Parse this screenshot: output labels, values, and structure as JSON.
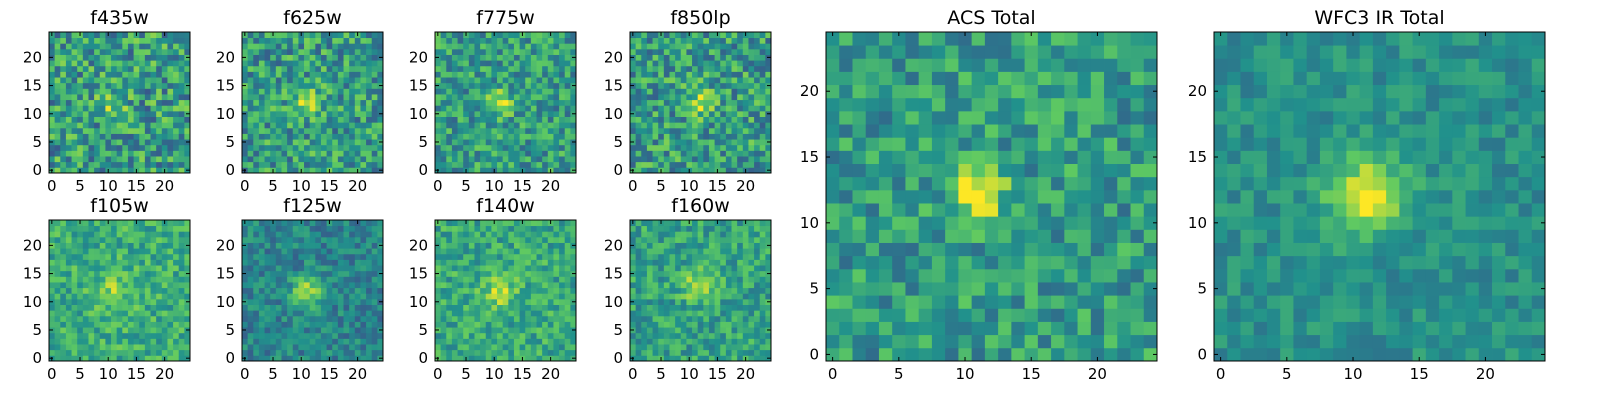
{
  "colormap": "viridis",
  "colormap_stops": [
    "#440154",
    "#3b528b",
    "#21918c",
    "#5ec962",
    "#fde725"
  ],
  "axes_color": "#000000",
  "background": "#ffffff",
  "chart_data": [
    {
      "type": "heatmap",
      "title": "f435w",
      "size": 25,
      "xlim": [
        0,
        24
      ],
      "ylim": [
        0,
        24
      ],
      "xticks": [
        0,
        5,
        10,
        15,
        20
      ],
      "yticks": [
        0,
        5,
        10,
        15,
        20
      ],
      "source_center": [
        11,
        12
      ],
      "source_strength": 0.25,
      "source_width": 1.6,
      "noise": 0.55,
      "base": 0.55
    },
    {
      "type": "heatmap",
      "title": "f625w",
      "size": 25,
      "xlim": [
        0,
        24
      ],
      "ylim": [
        0,
        24
      ],
      "xticks": [
        0,
        5,
        10,
        15,
        20
      ],
      "yticks": [
        0,
        5,
        10,
        15,
        20
      ],
      "source_center": [
        11,
        12
      ],
      "source_strength": 0.4,
      "source_width": 1.5,
      "noise": 0.5,
      "base": 0.55
    },
    {
      "type": "heatmap",
      "title": "f775w",
      "size": 25,
      "xlim": [
        0,
        24
      ],
      "ylim": [
        0,
        24
      ],
      "xticks": [
        0,
        5,
        10,
        15,
        20
      ],
      "yticks": [
        0,
        5,
        10,
        15,
        20
      ],
      "source_center": [
        11,
        12
      ],
      "source_strength": 0.4,
      "source_width": 1.5,
      "noise": 0.45,
      "base": 0.55
    },
    {
      "type": "heatmap",
      "title": "f850lp",
      "size": 25,
      "xlim": [
        0,
        24
      ],
      "ylim": [
        0,
        24
      ],
      "xticks": [
        0,
        5,
        10,
        15,
        20
      ],
      "yticks": [
        0,
        5,
        10,
        15,
        20
      ],
      "source_center": [
        12,
        12
      ],
      "source_strength": 0.35,
      "source_width": 1.6,
      "noise": 0.5,
      "base": 0.55
    },
    {
      "type": "heatmap",
      "title": "f105w",
      "size": 25,
      "xlim": [
        0,
        24
      ],
      "ylim": [
        0,
        24
      ],
      "xticks": [
        0,
        5,
        10,
        15,
        20
      ],
      "yticks": [
        0,
        5,
        10,
        15,
        20
      ],
      "source_center": [
        11,
        12
      ],
      "source_strength": 0.2,
      "source_width": 2.2,
      "noise": 0.35,
      "base": 0.62
    },
    {
      "type": "heatmap",
      "title": "f125w",
      "size": 25,
      "xlim": [
        0,
        24
      ],
      "ylim": [
        0,
        24
      ],
      "xticks": [
        0,
        5,
        10,
        15,
        20
      ],
      "yticks": [
        0,
        5,
        10,
        15,
        20
      ],
      "source_center": [
        11,
        12
      ],
      "source_strength": 0.45,
      "source_width": 1.8,
      "noise": 0.3,
      "base": 0.45
    },
    {
      "type": "heatmap",
      "title": "f140w",
      "size": 25,
      "xlim": [
        0,
        24
      ],
      "ylim": [
        0,
        24
      ],
      "xticks": [
        0,
        5,
        10,
        15,
        20
      ],
      "yticks": [
        0,
        5,
        10,
        15,
        20
      ],
      "source_center": [
        11,
        12
      ],
      "source_strength": 0.25,
      "source_width": 2.2,
      "noise": 0.35,
      "base": 0.6
    },
    {
      "type": "heatmap",
      "title": "f160w",
      "size": 25,
      "xlim": [
        0,
        24
      ],
      "ylim": [
        0,
        24
      ],
      "xticks": [
        0,
        5,
        10,
        15,
        20
      ],
      "yticks": [
        0,
        5,
        10,
        15,
        20
      ],
      "source_center": [
        12,
        13
      ],
      "source_strength": 0.35,
      "source_width": 1.9,
      "noise": 0.35,
      "base": 0.58
    },
    {
      "type": "heatmap",
      "title": "ACS Total",
      "size": 25,
      "xlim": [
        0,
        24
      ],
      "ylim": [
        0,
        24
      ],
      "xticks": [
        0,
        5,
        10,
        15,
        20
      ],
      "yticks": [
        0,
        5,
        10,
        15,
        20
      ],
      "source_center": [
        11,
        12
      ],
      "source_strength": 0.45,
      "source_width": 1.4,
      "noise": 0.4,
      "base": 0.55
    },
    {
      "type": "heatmap",
      "title": "WFC3 IR Total",
      "size": 25,
      "xlim": [
        0,
        24
      ],
      "ylim": [
        0,
        24
      ],
      "xticks": [
        0,
        5,
        10,
        15,
        20
      ],
      "yticks": [
        0,
        5,
        10,
        15,
        20
      ],
      "source_center": [
        11,
        12
      ],
      "source_strength": 0.5,
      "source_width": 2.0,
      "noise": 0.22,
      "base": 0.5
    }
  ]
}
